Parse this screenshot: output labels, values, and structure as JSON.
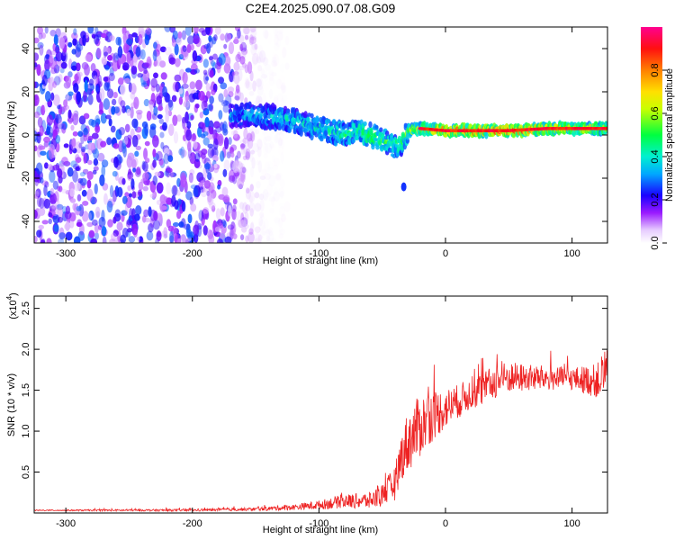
{
  "title": "C2E4.2025.090.07.08.G09",
  "chart_data": [
    {
      "type": "heatmap",
      "xlabel": "Height of straight line (km)",
      "ylabel": "Frequency (Hz)",
      "xlim": [
        -325,
        128
      ],
      "ylim": [
        -50,
        50
      ],
      "x_ticks": [
        -300,
        -200,
        -100,
        0,
        100
      ],
      "y_ticks": [
        -40,
        -20,
        0,
        20,
        40
      ],
      "colorbar": {
        "label": "Normalized spectral amplitude",
        "range": [
          0,
          1
        ],
        "ticks": [
          0.0,
          0.2,
          0.4,
          0.6,
          0.8
        ],
        "colormap": [
          "#ffffff",
          "#d9b8ff",
          "#8c00ff",
          "#0000ff",
          "#00e0ff",
          "#00ff40",
          "#ffff00",
          "#ff8000",
          "#ff0000",
          "#ff0080"
        ]
      },
      "features": {
        "noise_region_x": [
          -325,
          -140
        ],
        "noise_amplitude": 0.18,
        "signal_trace": {
          "x": [
            -170,
            -150,
            -130,
            -110,
            -100,
            -90,
            -80,
            -70,
            -60,
            -50,
            -40,
            -35,
            -30,
            -20,
            0,
            20,
            50,
            80,
            100,
            128
          ],
          "y": [
            9,
            9,
            8,
            5,
            3,
            2,
            0,
            2,
            0,
            -2,
            -5,
            -4,
            2,
            3,
            2,
            2,
            2,
            3,
            3,
            3
          ],
          "amplitude": [
            0.25,
            0.28,
            0.32,
            0.34,
            0.35,
            0.38,
            0.4,
            0.42,
            0.45,
            0.45,
            0.42,
            0.4,
            0.55,
            0.6,
            0.75,
            0.8,
            0.85,
            0.7,
            0.65,
            0.6
          ]
        },
        "outlier": {
          "x": -33,
          "y": -24,
          "amplitude": 0.25
        }
      }
    },
    {
      "type": "line",
      "xlabel": "Height of straight line (km)",
      "ylabel": "SNR (10 * v/v)",
      "y_scale_label": "(x10",
      "y_scale_exponent": "4",
      "y_scale_suffix": ")",
      "xlim": [
        -325,
        128
      ],
      "ylim": [
        0,
        2.65
      ],
      "x_ticks": [
        -300,
        -200,
        -100,
        0,
        100
      ],
      "y_ticks": [
        0.5,
        1.0,
        1.5,
        2.0,
        2.5
      ],
      "series": [
        {
          "color": "#ee2222",
          "envelope": {
            "x": [
              -325,
              -200,
              -150,
              -120,
              -100,
              -80,
              -60,
              -50,
              -40,
              -35,
              -30,
              -20,
              -10,
              0,
              10,
              20,
              30,
              40,
              50,
              60,
              80,
              100,
              120,
              125,
              128
            ],
            "base": [
              0.03,
              0.03,
              0.04,
              0.06,
              0.08,
              0.12,
              0.12,
              0.18,
              0.3,
              0.6,
              0.75,
              0.95,
              1.1,
              1.2,
              1.3,
              1.4,
              1.45,
              1.55,
              1.6,
              1.6,
              1.6,
              1.6,
              1.55,
              1.6,
              1.65
            ],
            "spread": [
              0.01,
              0.02,
              0.03,
              0.05,
              0.08,
              0.12,
              0.15,
              0.2,
              0.3,
              0.4,
              0.55,
              0.55,
              0.45,
              0.35,
              0.3,
              0.28,
              0.3,
              0.3,
              0.28,
              0.25,
              0.22,
              0.2,
              0.3,
              0.45,
              0.6
            ]
          }
        }
      ]
    }
  ]
}
